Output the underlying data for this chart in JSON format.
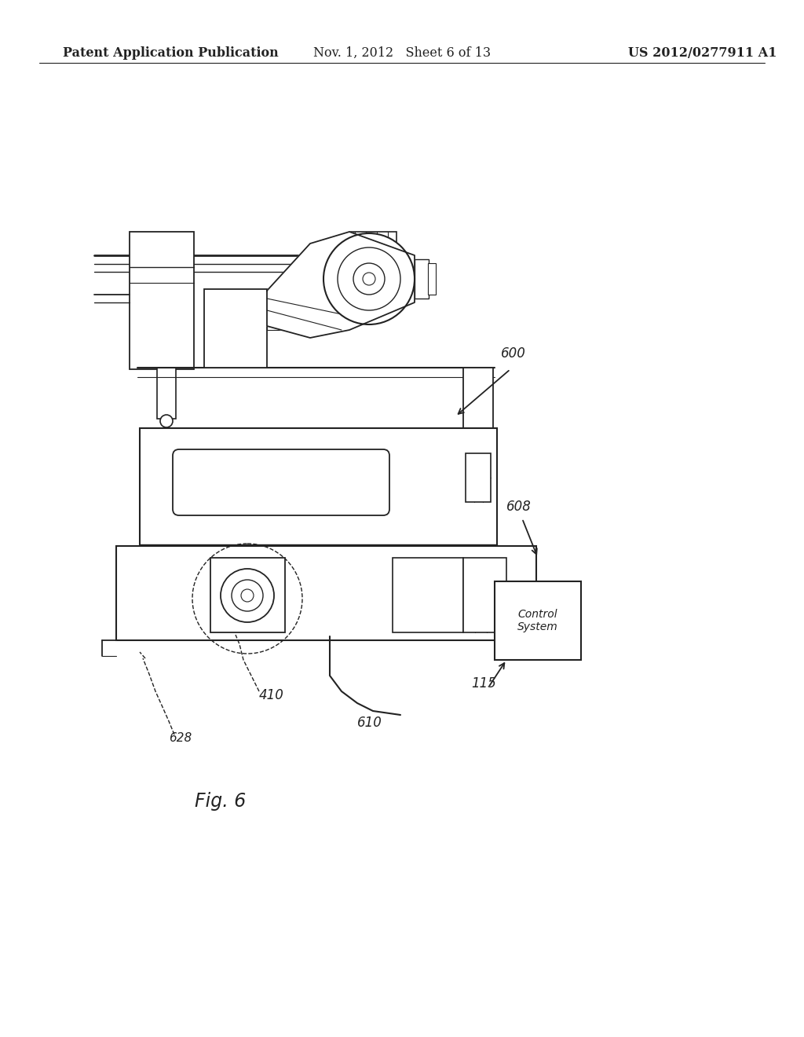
{
  "header_left": "Patent Application Publication",
  "header_mid": "Nov. 1, 2012   Sheet 6 of 13",
  "header_right": "US 2012/0277911 A1",
  "fig_label": "Fig. 6",
  "background": "#ffffff",
  "ink": "#222222",
  "header_fontsize": 11.5
}
